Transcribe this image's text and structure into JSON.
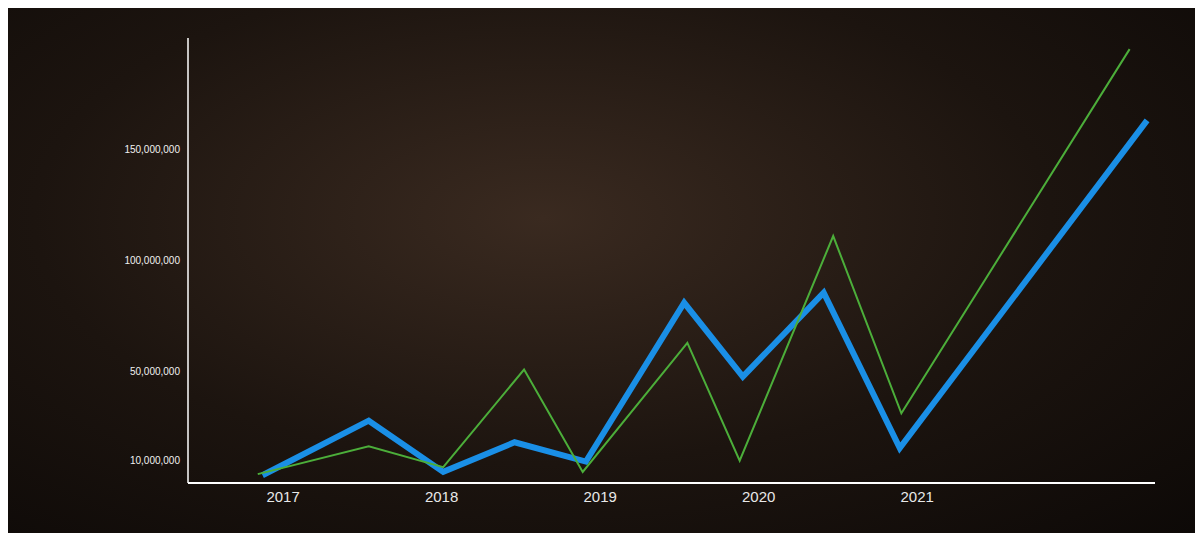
{
  "chart_data": {
    "type": "line",
    "grid": false,
    "tick_labels": true,
    "xlim": [
      2016.4,
      2022.5
    ],
    "xticks": [
      2017,
      2018,
      2019,
      2020,
      2021
    ],
    "ylim": [
      0,
      200000000
    ],
    "yticks": [
      {
        "value": 10000000,
        "label": "10,000,000"
      },
      {
        "value": 50000000,
        "label": "50,000,000"
      },
      {
        "value": 100000000,
        "label": "100,000,000"
      },
      {
        "value": 150000000,
        "label": "150,000,000"
      }
    ],
    "series": [
      {
        "color": "#1a8fe6",
        "marker": "none",
        "line_style": "solid",
        "x": [
          2016.87,
          2017.54,
          2018.01,
          2018.46,
          2018.91,
          2019.53,
          2019.9,
          2020.41,
          2020.89,
          2022.45
        ],
        "values": [
          3500000,
          28000000,
          5000000,
          18300000,
          9600000,
          81000000,
          47800000,
          85500000,
          15700000,
          163000000
        ]
      },
      {
        "color": "#4cae3a",
        "marker": "none",
        "line_style": "solid",
        "x": [
          2016.84,
          2017.54,
          2018.01,
          2018.52,
          2018.89,
          2019.55,
          2019.88,
          2020.47,
          2020.9,
          2022.34
        ],
        "values": [
          4000000,
          16500000,
          7100000,
          51000000,
          5000000,
          63000000,
          10000000,
          111000000,
          31300000,
          195000000
        ]
      }
    ]
  }
}
